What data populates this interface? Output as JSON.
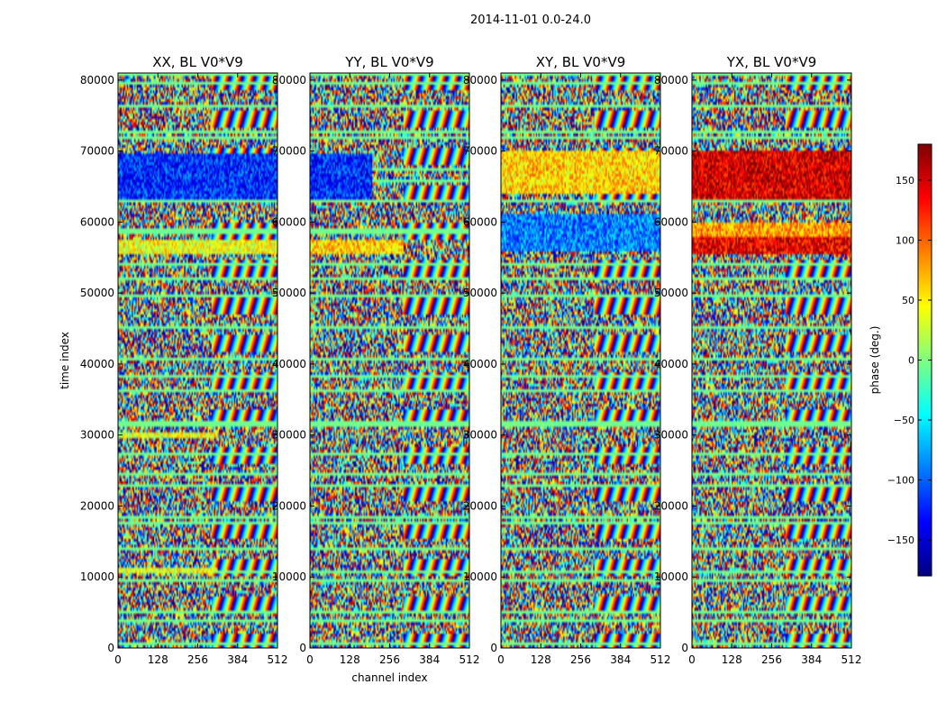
{
  "suptitle": "2014-11-01 0.0-24.0",
  "colors": {
    "jet": [
      "#00007f",
      "#0000ff",
      "#007fff",
      "#00ffff",
      "#7fff7f",
      "#ffff00",
      "#ff7f00",
      "#ff0000",
      "#7f0000"
    ],
    "axis": "#000000",
    "background": "#ffffff"
  },
  "chart_data": [
    {
      "type": "heatmap",
      "title": "XX, BL V0*V9",
      "xlabel": "",
      "ylabel": "time index",
      "xlim": [
        0,
        512
      ],
      "ylim": [
        0,
        81000
      ],
      "xticks": [
        0,
        128,
        256,
        384,
        512
      ],
      "yticks": [
        0,
        10000,
        20000,
        30000,
        40000,
        50000,
        60000,
        70000,
        80000
      ],
      "z_quantity": "phase (deg.)",
      "z_range": [
        -180,
        180
      ],
      "regions": [
        {
          "t": [
            63000,
            69500
          ],
          "ch": [
            0,
            512
          ],
          "phase_mean": -120,
          "note": "coherent blue band"
        },
        {
          "t": [
            55500,
            57500
          ],
          "ch": [
            0,
            512
          ],
          "phase_mean": 40,
          "note": "coherent yellow band"
        },
        {
          "t": [
            29500,
            30500
          ],
          "ch": [
            0,
            320
          ],
          "phase_mean": 40
        },
        {
          "t": [
            10500,
            11500
          ],
          "ch": [
            0,
            320
          ],
          "phase_mean": 40
        }
      ]
    },
    {
      "type": "heatmap",
      "title": "YY, BL V0*V9",
      "xlabel": "channel index",
      "ylabel": "",
      "xlim": [
        0,
        512
      ],
      "ylim": [
        0,
        81000
      ],
      "xticks": [
        0,
        128,
        256,
        384,
        512
      ],
      "yticks": [
        0,
        10000,
        20000,
        30000,
        40000,
        50000,
        60000,
        70000,
        80000
      ],
      "z_quantity": "phase (deg.)",
      "z_range": [
        -180,
        180
      ],
      "regions": [
        {
          "t": [
            63000,
            69500
          ],
          "ch": [
            0,
            200
          ],
          "phase_mean": -120
        },
        {
          "t": [
            55500,
            57500
          ],
          "ch": [
            0,
            300
          ],
          "phase_mean": 60
        }
      ]
    },
    {
      "type": "heatmap",
      "title": "XY, BL V0*V9",
      "xlabel": "",
      "ylabel": "",
      "xlim": [
        0,
        512
      ],
      "ylim": [
        0,
        81000
      ],
      "xticks": [
        0,
        128,
        256,
        384,
        512
      ],
      "yticks": [
        0,
        10000,
        20000,
        30000,
        40000,
        50000,
        60000,
        70000,
        80000
      ],
      "z_quantity": "phase (deg.)",
      "z_range": [
        -180,
        180
      ],
      "regions": [
        {
          "t": [
            64000,
            70000
          ],
          "ch": [
            0,
            512
          ],
          "phase_mean": 60
        },
        {
          "t": [
            56000,
            61000
          ],
          "ch": [
            0,
            512
          ],
          "phase_mean": -90
        }
      ]
    },
    {
      "type": "heatmap",
      "title": "YX, BL V0*V9",
      "xlabel": "",
      "ylabel": "",
      "xlim": [
        0,
        512
      ],
      "ylim": [
        0,
        81000
      ],
      "xticks": [
        0,
        128,
        256,
        384,
        512
      ],
      "yticks": [
        0,
        10000,
        20000,
        30000,
        40000,
        50000,
        60000,
        70000,
        80000
      ],
      "z_quantity": "phase (deg.)",
      "z_range": [
        -180,
        180
      ],
      "regions": [
        {
          "t": [
            63000,
            70000
          ],
          "ch": [
            0,
            512
          ],
          "phase_mean": 150
        },
        {
          "t": [
            55500,
            58000
          ],
          "ch": [
            0,
            512
          ],
          "phase_mean": 140
        },
        {
          "t": [
            58000,
            60000
          ],
          "ch": [
            0,
            512
          ],
          "phase_mean": 80
        }
      ]
    }
  ],
  "colorbar": {
    "label": "phase (deg.)",
    "range": [
      -180,
      180
    ],
    "ticks": [
      -150,
      -100,
      -50,
      0,
      50,
      100,
      150
    ],
    "tick_labels": [
      "−150",
      "−100",
      "−50",
      "0",
      "50",
      "100",
      "150"
    ]
  }
}
